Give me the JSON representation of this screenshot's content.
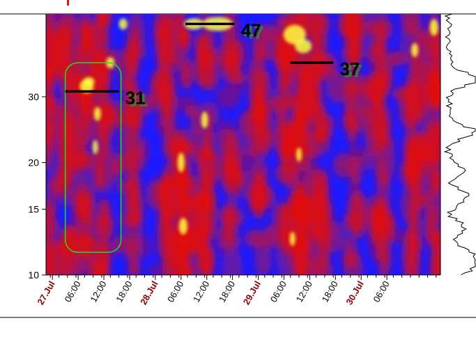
{
  "chart_data": {
    "type": "heatmap",
    "title": "",
    "xlabel": "",
    "ylabel": "",
    "y_scale": "log",
    "ylim": [
      10,
      50
    ],
    "y_ticks": [
      {
        "value": 10,
        "label": "10"
      },
      {
        "value": 15,
        "label": "15"
      },
      {
        "value": 20,
        "label": "20"
      },
      {
        "value": 30,
        "label": "30"
      }
    ],
    "x_range_hours": [
      0,
      92
    ],
    "x_ticks": [
      {
        "hours": 0,
        "label": "27.Jul",
        "day": true
      },
      {
        "hours": 6,
        "label": "06:00",
        "day": false
      },
      {
        "hours": 12,
        "label": "12:00",
        "day": false
      },
      {
        "hours": 18,
        "label": "18:00",
        "day": false
      },
      {
        "hours": 24,
        "label": "28.Jul",
        "day": true
      },
      {
        "hours": 30,
        "label": "06:00",
        "day": false
      },
      {
        "hours": 36,
        "label": "12:00",
        "day": false
      },
      {
        "hours": 42,
        "label": "18:00",
        "day": false
      },
      {
        "hours": 48,
        "label": "29.Jul",
        "day": true
      },
      {
        "hours": 54,
        "label": "06:00",
        "day": false
      },
      {
        "hours": 60,
        "label": "12:00",
        "day": false
      },
      {
        "hours": 66,
        "label": "18:00",
        "day": false
      },
      {
        "hours": 72,
        "label": "30.Jul",
        "day": true
      },
      {
        "hours": 78,
        "label": "06:00",
        "day": false
      }
    ],
    "annotations": [
      {
        "label": "31",
        "period": 31,
        "hours_start": 4.5,
        "hours_end": 17
      },
      {
        "label": "47",
        "period": 47,
        "hours_start": 32.5,
        "hours_end": 44
      },
      {
        "label": "37",
        "period": 37,
        "hours_start": 57,
        "hours_end": 67
      }
    ],
    "highlight_region": {
      "hours_start": 4.5,
      "hours_end": 17.5,
      "period_min": 11.5,
      "period_max": 37
    },
    "colors": {
      "low": "#1a1aff",
      "mid": "#e01010",
      "high": "#ffff40",
      "highlight": "#22dd22",
      "day_label": "#8b0000",
      "marker": "#000000",
      "annotation_shadow": "#2e8b2e"
    }
  }
}
